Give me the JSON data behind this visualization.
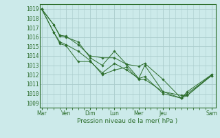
{
  "xlabel": "Pression niveau de la mer( hPa )",
  "bg_color": "#cceaea",
  "grid_color": "#aacccc",
  "line_color": "#2d6e2d",
  "marker_color": "#2d6e2d",
  "ylim": [
    1008.5,
    1019.5
  ],
  "yticks": [
    1009,
    1010,
    1011,
    1012,
    1013,
    1014,
    1015,
    1016,
    1017,
    1018,
    1019
  ],
  "day_labels": [
    "Mar",
    "Ven",
    "Dim",
    "Lun",
    "Mer",
    "Jeu",
    "Sam"
  ],
  "day_positions": [
    0,
    24,
    48,
    72,
    96,
    120,
    168
  ],
  "xlim": [
    -2,
    172
  ],
  "series": [
    {
      "x": [
        0,
        12,
        18,
        24,
        36,
        48,
        60,
        72,
        84,
        96,
        102,
        120,
        138,
        144,
        168
      ],
      "y": [
        1019,
        1017.3,
        1016.1,
        1016.0,
        1015.5,
        1013.8,
        1013.0,
        1014.5,
        1013.1,
        1012.9,
        1013.2,
        1011.5,
        1009.5,
        1009.8,
        1012.0
      ]
    },
    {
      "x": [
        0,
        12,
        18,
        24,
        36,
        48,
        60,
        72,
        84,
        96,
        102,
        120,
        138,
        144,
        168
      ],
      "y": [
        1019,
        1017.3,
        1016.2,
        1016.1,
        1015.2,
        1014.0,
        1013.8,
        1013.8,
        1013.1,
        1011.6,
        1013.0,
        1010.2,
        1009.8,
        1009.8,
        1011.9
      ]
    },
    {
      "x": [
        0,
        12,
        18,
        24,
        36,
        48,
        60,
        72,
        84,
        96,
        102,
        120,
        138,
        144,
        168
      ],
      "y": [
        1019,
        1016.5,
        1015.5,
        1015.2,
        1014.5,
        1013.5,
        1012.0,
        1012.5,
        1012.8,
        1011.5,
        1011.5,
        1010.2,
        1009.5,
        1010.2,
        1012.0
      ]
    },
    {
      "x": [
        0,
        12,
        18,
        24,
        36,
        48,
        60,
        72,
        84,
        96,
        102,
        120,
        138,
        144,
        168
      ],
      "y": [
        1019,
        1016.5,
        1015.3,
        1015.1,
        1013.4,
        1013.4,
        1012.2,
        1013.2,
        1012.5,
        1011.6,
        1011.8,
        1010.0,
        1009.5,
        1010.0,
        1011.9
      ]
    }
  ]
}
